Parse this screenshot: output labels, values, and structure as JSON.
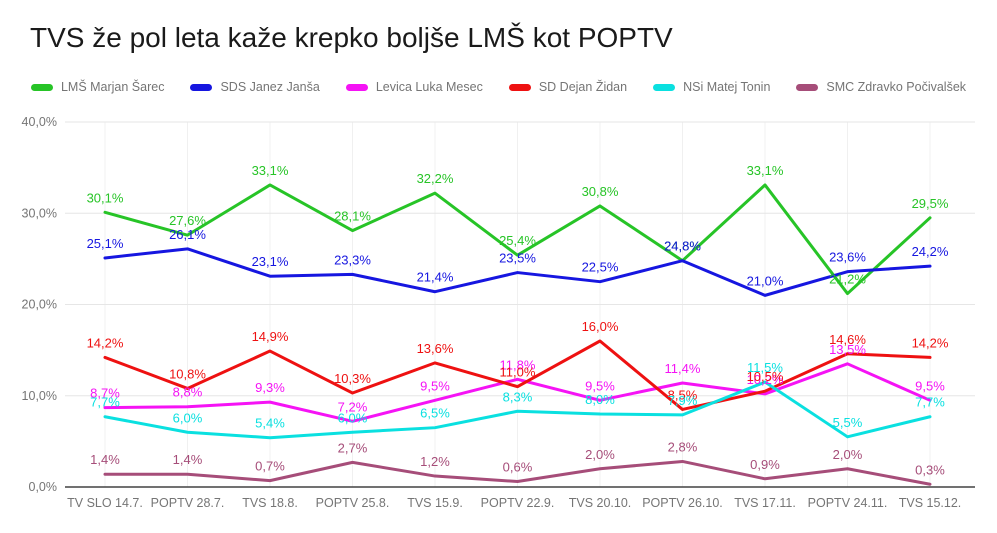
{
  "title": "TVS že pol leta kaže krepko boljše LMŠ kot POPTV",
  "chart_data": {
    "type": "line",
    "title": "TVS že pol leta kaže krepko boljše LMŠ kot POPTV",
    "categories": [
      "TV SLO 14.7.",
      "POPTV 28.7.",
      "TVS 18.8.",
      "POPTV 25.8.",
      "TVS 15.9.",
      "POPTV 22.9.",
      "TVS 20.10.",
      "POPTV 26.10.",
      "TVS 17.11.",
      "POPTV 24.11.",
      "TVS 15.12."
    ],
    "series": [
      {
        "name": "LMŠ Marjan Šarec",
        "color": "#27c427",
        "values": [
          30.1,
          27.6,
          33.1,
          28.1,
          32.2,
          25.4,
          30.8,
          24.8,
          33.1,
          21.2,
          29.5
        ]
      },
      {
        "name": "SDS Janez Janša",
        "color": "#1616e0",
        "values": [
          25.1,
          26.1,
          23.1,
          23.3,
          21.4,
          23.5,
          22.5,
          24.8,
          21.0,
          23.6,
          24.2
        ]
      },
      {
        "name": "Levica Luka Mesec",
        "color": "#f513f5",
        "values": [
          8.7,
          8.8,
          9.3,
          7.2,
          9.5,
          11.8,
          9.5,
          11.4,
          10.2,
          13.5,
          9.5
        ]
      },
      {
        "name": "SD Dejan Židan",
        "color": "#ee1111",
        "values": [
          14.2,
          10.8,
          14.9,
          10.3,
          13.6,
          11.0,
          16.0,
          8.5,
          10.5,
          14.6,
          14.2
        ]
      },
      {
        "name": "NSi Matej Tonin",
        "color": "#0ae0e0",
        "values": [
          7.7,
          6.0,
          5.4,
          6.0,
          6.5,
          8.3,
          8.0,
          7.9,
          11.5,
          5.5,
          7.7
        ]
      },
      {
        "name": "SMC Zdravko Počivalšek",
        "color": "#a64d79",
        "values": [
          1.4,
          1.4,
          0.7,
          2.7,
          1.2,
          0.6,
          2.0,
          2.8,
          0.9,
          2.0,
          0.3
        ]
      }
    ],
    "xlabel": "",
    "ylabel": "",
    "ylim": [
      0,
      40
    ],
    "yticks": [
      {
        "value": 0,
        "label": "0,0%"
      },
      {
        "value": 10,
        "label": "10,0%"
      },
      {
        "value": 20,
        "label": "20,0%"
      },
      {
        "value": 30,
        "label": "30,0%"
      },
      {
        "value": 40,
        "label": "40,0%"
      }
    ],
    "grid": "horizontal-and-vertical",
    "legend_position": "top",
    "value_labels": "shown above each point, comma decimal, percent suffix"
  },
  "axis_colors": {
    "tick_text": "#757575",
    "gridline": "#e6e6e6",
    "vertical_gridline": "#f0f0f0",
    "baseline": "#424242"
  }
}
